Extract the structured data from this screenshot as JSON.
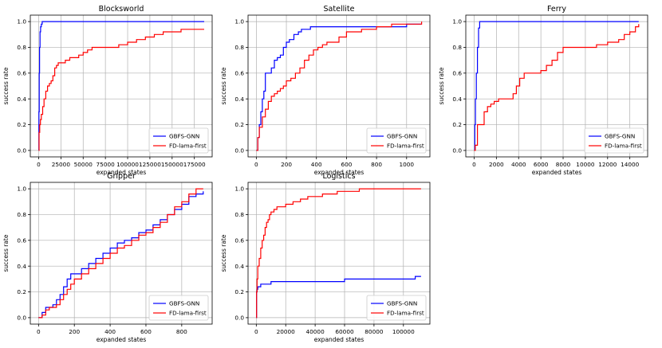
{
  "colors": {
    "gnn": "#0000ff",
    "lama": "#ff0000",
    "grid": "#b0b0b0"
  },
  "chart_data": [
    {
      "type": "line",
      "title": "Blocksworld",
      "xlabel": "expanded states",
      "ylabel": "success rate",
      "xlim": [
        -9400,
        195000
      ],
      "ylim": [
        -0.05,
        1.05
      ],
      "xticks": [
        0,
        25000,
        50000,
        75000,
        100000,
        125000,
        150000,
        175000
      ],
      "xtick_labels": [
        "0",
        "25000",
        "50000",
        "75000",
        "100000",
        "125000",
        "150000",
        "175000"
      ],
      "yticks": [
        0.0,
        0.2,
        0.4,
        0.6,
        0.8,
        1.0
      ],
      "ytick_labels": [
        "0.0",
        "0.2",
        "0.4",
        "0.6",
        "0.8",
        "1.0"
      ],
      "legend": "lower-right",
      "series": [
        {
          "name": "GBFS-GNN",
          "color": "#0000ff",
          "x": [
            0,
            300,
            600,
            1000,
            1500,
            2200,
            3000,
            4000,
            186000
          ],
          "y": [
            0.0,
            0.3,
            0.6,
            0.8,
            0.92,
            0.96,
            0.98,
            1.0,
            1.0
          ]
        },
        {
          "name": "FD-lama-first",
          "color": "#ff0000",
          "x": [
            0,
            500,
            1200,
            2000,
            3000,
            4500,
            6000,
            8000,
            10000,
            12000,
            14000,
            16000,
            18000,
            20000,
            22000,
            25000,
            30000,
            35000,
            40000,
            45000,
            50000,
            55000,
            60000,
            65000,
            70000,
            80000,
            90000,
            100000,
            110000,
            120000,
            130000,
            140000,
            150000,
            160000,
            186000
          ],
          "y": [
            0.0,
            0.14,
            0.2,
            0.24,
            0.28,
            0.34,
            0.4,
            0.46,
            0.5,
            0.52,
            0.54,
            0.58,
            0.64,
            0.66,
            0.68,
            0.68,
            0.7,
            0.72,
            0.72,
            0.74,
            0.76,
            0.78,
            0.8,
            0.8,
            0.8,
            0.8,
            0.82,
            0.84,
            0.86,
            0.88,
            0.9,
            0.92,
            0.92,
            0.94,
            0.94
          ]
        }
      ]
    },
    {
      "type": "line",
      "title": "Satellite",
      "xlabel": "expanded states",
      "ylabel": "success rate",
      "xlim": [
        -55,
        1155
      ],
      "ylim": [
        -0.05,
        1.05
      ],
      "xticks": [
        0,
        200,
        400,
        600,
        800,
        1000
      ],
      "xtick_labels": [
        "0",
        "200",
        "400",
        "600",
        "800",
        "1000"
      ],
      "yticks": [
        0.0,
        0.2,
        0.4,
        0.6,
        0.8,
        1.0
      ],
      "ytick_labels": [
        "0.0",
        "0.2",
        "0.4",
        "0.6",
        "0.8",
        "1.0"
      ],
      "legend": "lower-right",
      "series": [
        {
          "name": "GBFS-GNN",
          "color": "#0000ff",
          "x": [
            0,
            10,
            20,
            30,
            40,
            50,
            60,
            70,
            80,
            100,
            120,
            140,
            160,
            180,
            200,
            220,
            250,
            280,
            300,
            330,
            360,
            400,
            500,
            600,
            700,
            800,
            900,
            1000,
            1100
          ],
          "y": [
            0.0,
            0.1,
            0.2,
            0.3,
            0.4,
            0.46,
            0.6,
            0.6,
            0.6,
            0.64,
            0.7,
            0.72,
            0.74,
            0.8,
            0.84,
            0.86,
            0.9,
            0.92,
            0.94,
            0.94,
            0.96,
            0.96,
            0.96,
            0.96,
            0.96,
            0.96,
            0.96,
            0.98,
            0.98
          ]
        },
        {
          "name": "FD-lama-first",
          "color": "#ff0000",
          "x": [
            0,
            10,
            20,
            40,
            60,
            80,
            100,
            120,
            140,
            160,
            180,
            200,
            230,
            260,
            290,
            320,
            350,
            380,
            410,
            440,
            470,
            500,
            550,
            600,
            700,
            800,
            900,
            1000,
            1100
          ],
          "y": [
            0.0,
            0.1,
            0.18,
            0.26,
            0.32,
            0.38,
            0.42,
            0.44,
            0.46,
            0.48,
            0.5,
            0.54,
            0.56,
            0.6,
            0.64,
            0.7,
            0.74,
            0.78,
            0.8,
            0.82,
            0.84,
            0.84,
            0.88,
            0.92,
            0.94,
            0.96,
            0.98,
            0.98,
            1.0
          ]
        }
      ]
    },
    {
      "type": "line",
      "title": "Ferry",
      "xlabel": "expanded states",
      "ylabel": "success rate",
      "xlim": [
        -750,
        15600
      ],
      "ylim": [
        -0.05,
        1.05
      ],
      "xticks": [
        0,
        2000,
        4000,
        6000,
        8000,
        10000,
        12000,
        14000
      ],
      "xtick_labels": [
        "0",
        "2000",
        "4000",
        "6000",
        "8000",
        "10000",
        "12000",
        "14000"
      ],
      "yticks": [
        0.0,
        0.2,
        0.4,
        0.6,
        0.8,
        1.0
      ],
      "ytick_labels": [
        "0.0",
        "0.2",
        "0.4",
        "0.6",
        "0.8",
        "1.0"
      ],
      "legend": "lower-right",
      "series": [
        {
          "name": "GBFS-GNN",
          "color": "#0000ff",
          "x": [
            0,
            60,
            120,
            200,
            300,
            400,
            500,
            14800
          ],
          "y": [
            0.0,
            0.2,
            0.4,
            0.6,
            0.8,
            0.95,
            1.0,
            1.0
          ]
        },
        {
          "name": "FD-lama-first",
          "color": "#ff0000",
          "x": [
            0,
            100,
            300,
            600,
            900,
            1200,
            1500,
            1800,
            2200,
            3000,
            3500,
            3800,
            4100,
            4500,
            5000,
            5500,
            6000,
            6500,
            7000,
            7500,
            8000,
            9000,
            10000,
            11000,
            12000,
            13000,
            13500,
            14000,
            14500,
            14800
          ],
          "y": [
            0.0,
            0.04,
            0.2,
            0.2,
            0.3,
            0.34,
            0.36,
            0.38,
            0.4,
            0.4,
            0.44,
            0.5,
            0.56,
            0.6,
            0.6,
            0.6,
            0.62,
            0.66,
            0.7,
            0.76,
            0.8,
            0.8,
            0.8,
            0.82,
            0.84,
            0.86,
            0.9,
            0.92,
            0.96,
            0.98
          ]
        }
      ]
    },
    {
      "type": "line",
      "title": "Gripper",
      "xlabel": "expanded states",
      "ylabel": "success rate",
      "xlim": [
        -46,
        970
      ],
      "ylim": [
        -0.05,
        1.05
      ],
      "xticks": [
        0,
        200,
        400,
        600,
        800
      ],
      "xtick_labels": [
        "0",
        "200",
        "400",
        "600",
        "800"
      ],
      "yticks": [
        0.0,
        0.2,
        0.4,
        0.6,
        0.8,
        1.0
      ],
      "ytick_labels": [
        "0.0",
        "0.2",
        "0.4",
        "0.6",
        "0.8",
        "1.0"
      ],
      "legend": "lower-right",
      "series": [
        {
          "name": "GBFS-GNN",
          "color": "#0000ff",
          "x": [
            0,
            20,
            40,
            60,
            80,
            100,
            120,
            140,
            160,
            180,
            200,
            240,
            280,
            320,
            360,
            400,
            440,
            480,
            520,
            560,
            600,
            640,
            680,
            720,
            760,
            800,
            840,
            880,
            920
          ],
          "y": [
            0.0,
            0.04,
            0.08,
            0.08,
            0.1,
            0.14,
            0.18,
            0.24,
            0.3,
            0.34,
            0.34,
            0.38,
            0.42,
            0.46,
            0.5,
            0.54,
            0.58,
            0.6,
            0.62,
            0.66,
            0.68,
            0.72,
            0.76,
            0.8,
            0.84,
            0.88,
            0.94,
            0.96,
            0.98
          ]
        },
        {
          "name": "FD-lama-first",
          "color": "#ff0000",
          "x": [
            0,
            20,
            40,
            60,
            80,
            100,
            120,
            140,
            160,
            180,
            200,
            240,
            280,
            320,
            360,
            400,
            440,
            480,
            520,
            560,
            600,
            640,
            680,
            720,
            760,
            800,
            840,
            880,
            920
          ],
          "y": [
            0.0,
            0.02,
            0.06,
            0.08,
            0.08,
            0.1,
            0.14,
            0.18,
            0.22,
            0.26,
            0.3,
            0.34,
            0.38,
            0.42,
            0.46,
            0.5,
            0.54,
            0.56,
            0.6,
            0.64,
            0.66,
            0.7,
            0.74,
            0.8,
            0.86,
            0.9,
            0.96,
            1.0,
            1.0
          ]
        }
      ]
    },
    {
      "type": "line",
      "title": "Logistics",
      "xlabel": "expanded states",
      "ylabel": "success rate",
      "xlim": [
        -5600,
        118000
      ],
      "ylim": [
        -0.05,
        1.05
      ],
      "xticks": [
        0,
        20000,
        40000,
        60000,
        80000,
        100000
      ],
      "xtick_labels": [
        "0",
        "20000",
        "40000",
        "60000",
        "80000",
        "100000"
      ],
      "yticks": [
        0.0,
        0.2,
        0.4,
        0.6,
        0.8,
        1.0
      ],
      "ytick_labels": [
        "0.0",
        "0.2",
        "0.4",
        "0.6",
        "0.8",
        "1.0"
      ],
      "legend": "lower-right",
      "series": [
        {
          "name": "GBFS-GNN",
          "color": "#0000ff",
          "x": [
            0,
            200,
            500,
            1000,
            3000,
            6000,
            10000,
            20000,
            40000,
            58000,
            60000,
            80000,
            100000,
            108000,
            112000
          ],
          "y": [
            0.0,
            0.2,
            0.22,
            0.24,
            0.26,
            0.26,
            0.28,
            0.28,
            0.28,
            0.28,
            0.3,
            0.3,
            0.3,
            0.32,
            0.32
          ]
        },
        {
          "name": "FD-lama-first",
          "color": "#ff0000",
          "x": [
            0,
            200,
            500,
            1000,
            2000,
            3000,
            4000,
            5000,
            6000,
            7000,
            8000,
            9000,
            10000,
            12000,
            14000,
            16000,
            20000,
            25000,
            30000,
            35000,
            40000,
            45000,
            50000,
            55000,
            60000,
            70000,
            80000,
            100000,
            112000
          ],
          "y": [
            0.0,
            0.2,
            0.3,
            0.4,
            0.46,
            0.54,
            0.6,
            0.64,
            0.7,
            0.74,
            0.76,
            0.8,
            0.82,
            0.84,
            0.86,
            0.86,
            0.88,
            0.9,
            0.92,
            0.94,
            0.94,
            0.96,
            0.96,
            0.98,
            0.98,
            1.0,
            1.0,
            1.0,
            1.0
          ]
        }
      ]
    }
  ]
}
